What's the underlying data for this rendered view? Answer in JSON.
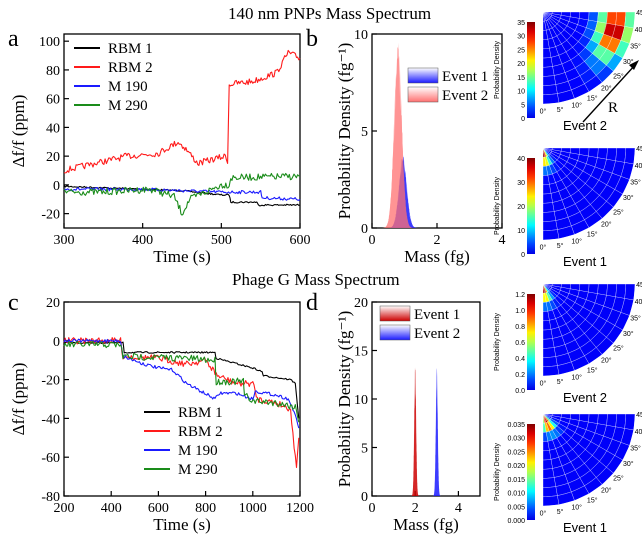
{
  "figure": {
    "row1_title": "140 nm PNPs Mass Spectrum",
    "row2_title": "Phage G Mass Spectrum",
    "panel_letters": [
      "a",
      "b",
      "c",
      "d"
    ],
    "polar_radius_label": "R",
    "polar_angle_ticks": [
      "0°",
      "5°",
      "10°",
      "15°",
      "20°",
      "25°",
      "30°",
      "35°",
      "40°",
      "45°"
    ],
    "polar_ylabel": "Probability Density",
    "polar_events": [
      "Event 2",
      "Event 1",
      "Event 2",
      "Event 1"
    ],
    "polar_colorbar_ticks": [
      [
        "0",
        "5",
        "10",
        "15",
        "20",
        "25",
        "30",
        "35"
      ],
      [
        "0",
        "10",
        "20",
        "30",
        "40"
      ],
      [
        "0.0",
        "0.2",
        "0.4",
        "0.6",
        "0.8",
        "1.0",
        "1.2"
      ],
      [
        "0.000",
        "0.005",
        "0.010",
        "0.015",
        "0.020",
        "0.025",
        "0.030",
        "0.035"
      ]
    ],
    "colors": {
      "black": "#000000",
      "red": "#ff1a1a",
      "blue": "#1a1aff",
      "green": "#1a8c1a"
    }
  },
  "chart_data": [
    {
      "panel": "a",
      "type": "line",
      "xlabel": "Time (s)",
      "ylabel": "Δf/f (ppm)",
      "xlim": [
        300,
        600
      ],
      "ylim": [
        -30,
        105
      ],
      "xticks": [
        300,
        400,
        500,
        600
      ],
      "yticks": [
        -20,
        0,
        20,
        40,
        60,
        80,
        100
      ],
      "legend": "top-left",
      "series": [
        {
          "name": "RBM 1",
          "color": "#000000",
          "points": [
            [
              300,
              -1
            ],
            [
              350,
              -2
            ],
            [
              400,
              -3
            ],
            [
              450,
              -4
            ],
            [
              500,
              -7
            ],
            [
              510,
              -7
            ],
            [
              512,
              -12
            ],
            [
              545,
              -12
            ],
            [
              547,
              -14
            ],
            [
              600,
              -14
            ]
          ]
        },
        {
          "name": "RBM 2",
          "color": "#ff1a1a",
          "points": [
            [
              300,
              10
            ],
            [
              340,
              15
            ],
            [
              380,
              20
            ],
            [
              420,
              22
            ],
            [
              445,
              30
            ],
            [
              455,
              25
            ],
            [
              470,
              15
            ],
            [
              505,
              20
            ],
            [
              508,
              17
            ],
            [
              510,
              70
            ],
            [
              540,
              72
            ],
            [
              570,
              78
            ],
            [
              585,
              92
            ],
            [
              600,
              88
            ]
          ]
        },
        {
          "name": "M 190",
          "color": "#1a1aff",
          "points": [
            [
              300,
              -3
            ],
            [
              400,
              -3
            ],
            [
              450,
              -4
            ],
            [
              500,
              -5
            ],
            [
              550,
              -5
            ],
            [
              552,
              -9
            ],
            [
              600,
              -10
            ]
          ]
        },
        {
          "name": "M 290",
          "color": "#1a8c1a",
          "points": [
            [
              300,
              -5
            ],
            [
              350,
              -5
            ],
            [
              410,
              -3
            ],
            [
              440,
              -8
            ],
            [
              450,
              -20
            ],
            [
              460,
              -10
            ],
            [
              500,
              0
            ],
            [
              510,
              0
            ],
            [
              512,
              5
            ],
            [
              600,
              6
            ]
          ]
        }
      ]
    },
    {
      "panel": "b",
      "type": "area",
      "xlabel": "Mass (fg)",
      "ylabel": "Probability Density (fg⁻¹)",
      "xlim": [
        0,
        4
      ],
      "ylim": [
        0,
        10
      ],
      "xticks": [
        0,
        2,
        4
      ],
      "yticks": [
        0,
        5,
        10
      ],
      "legend": "top-right",
      "series": [
        {
          "name": "Event 1",
          "color": "#1a1aff",
          "peak_mass": 0.95,
          "peak_density": 3.8
        },
        {
          "name": "Event 2",
          "color": "#ff7070",
          "peak_mass": 0.8,
          "peak_density": 9.6
        }
      ]
    },
    {
      "panel": "c",
      "type": "line",
      "xlabel": "Time (s)",
      "ylabel": "Δf/f (ppm)",
      "xlim": [
        200,
        1200
      ],
      "ylim": [
        -80,
        20
      ],
      "xticks": [
        200,
        400,
        600,
        800,
        1000,
        1200
      ],
      "yticks": [
        -80,
        -60,
        -40,
        -20,
        0,
        20
      ],
      "legend": "bottom-right",
      "series": [
        {
          "name": "RBM 1",
          "color": "#000000",
          "points": [
            [
              200,
              -1
            ],
            [
              450,
              -1
            ],
            [
              455,
              -6
            ],
            [
              840,
              -6
            ],
            [
              845,
              -9
            ],
            [
              1000,
              -14
            ],
            [
              1040,
              -16
            ],
            [
              1045,
              -18
            ],
            [
              1160,
              -20
            ],
            [
              1180,
              -22
            ],
            [
              1195,
              -40
            ]
          ]
        },
        {
          "name": "RBM 2",
          "color": "#ff1a1a",
          "points": [
            [
              200,
              0
            ],
            [
              440,
              0
            ],
            [
              450,
              -8
            ],
            [
              600,
              -9
            ],
            [
              720,
              -12
            ],
            [
              800,
              -10
            ],
            [
              850,
              -18
            ],
            [
              930,
              -22
            ],
            [
              1000,
              -22
            ],
            [
              1020,
              -30
            ],
            [
              1100,
              -32
            ],
            [
              1160,
              -35
            ],
            [
              1175,
              -55
            ],
            [
              1185,
              -64
            ],
            [
              1195,
              -50
            ]
          ]
        },
        {
          "name": "M 190",
          "color": "#1a1aff",
          "points": [
            [
              200,
              0
            ],
            [
              440,
              0
            ],
            [
              450,
              -8
            ],
            [
              540,
              -12
            ],
            [
              600,
              -14
            ],
            [
              660,
              -15
            ],
            [
              720,
              -22
            ],
            [
              780,
              -26
            ],
            [
              840,
              -30
            ],
            [
              860,
              -27
            ],
            [
              930,
              -27
            ],
            [
              1000,
              -30
            ],
            [
              1010,
              -26
            ],
            [
              1100,
              -28
            ],
            [
              1150,
              -30
            ],
            [
              1170,
              -35
            ],
            [
              1195,
              -45
            ]
          ]
        },
        {
          "name": "M 290",
          "color": "#1a8c1a",
          "points": [
            [
              200,
              -2
            ],
            [
              440,
              -2
            ],
            [
              450,
              -8
            ],
            [
              720,
              -9
            ],
            [
              840,
              -10
            ],
            [
              845,
              -21
            ],
            [
              960,
              -21
            ],
            [
              965,
              -28
            ],
            [
              1000,
              -31
            ],
            [
              1100,
              -32
            ],
            [
              1180,
              -34
            ],
            [
              1195,
              -42
            ]
          ]
        }
      ]
    },
    {
      "panel": "d",
      "type": "area",
      "xlabel": "Mass (fg)",
      "ylabel": "Probability Density (fg⁻¹)",
      "xlim": [
        0,
        5
      ],
      "ylim": [
        0,
        20
      ],
      "xticks": [
        0,
        2,
        4
      ],
      "yticks": [
        0,
        5,
        10,
        15,
        20
      ],
      "legend": "top-right",
      "series": [
        {
          "name": "Event 1",
          "color": "#cc0000",
          "peak_mass": 2.0,
          "peak_density": 13.5
        },
        {
          "name": "Event 2",
          "color": "#1a1aff",
          "peak_mass": 3.0,
          "peak_density": 13.5
        }
      ]
    }
  ]
}
